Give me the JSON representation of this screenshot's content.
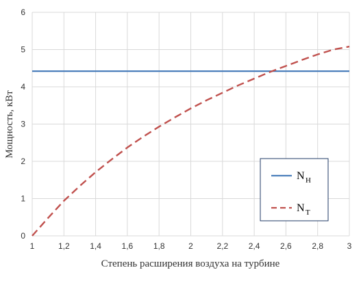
{
  "chart_data": {
    "type": "line",
    "title": "",
    "xlabel": "Степень расширения воздуха на турбине",
    "ylabel": "Мощность, кВт",
    "xlim": [
      1,
      3
    ],
    "ylim": [
      0,
      6
    ],
    "xticks": [
      "1",
      "1,2",
      "1,4",
      "1,6",
      "1,8",
      "2",
      "2,2",
      "2,4",
      "2,6",
      "2,8",
      "3"
    ],
    "yticks": [
      "0",
      "1",
      "2",
      "3",
      "4",
      "5",
      "6"
    ],
    "grid": true,
    "legend_position": "right",
    "series": [
      {
        "name": "N",
        "subscript": "Н",
        "style": "solid",
        "color": "#4a7ebb",
        "x": [
          1,
          3
        ],
        "y": [
          4.42,
          4.42
        ]
      },
      {
        "name": "N",
        "subscript": "Т",
        "style": "dashed",
        "color": "#c0504d",
        "x": [
          1,
          1.1,
          1.2,
          1.3,
          1.4,
          1.5,
          1.6,
          1.7,
          1.8,
          1.9,
          2,
          2.1,
          2.2,
          2.3,
          2.4,
          2.5,
          2.6,
          2.7,
          2.8,
          2.9,
          3
        ],
        "y": [
          0,
          0.48,
          0.94,
          1.34,
          1.71,
          2.05,
          2.37,
          2.66,
          2.93,
          3.18,
          3.42,
          3.64,
          3.84,
          4.04,
          4.22,
          4.4,
          4.56,
          4.72,
          4.87,
          5.0,
          5.08
        ]
      }
    ]
  }
}
